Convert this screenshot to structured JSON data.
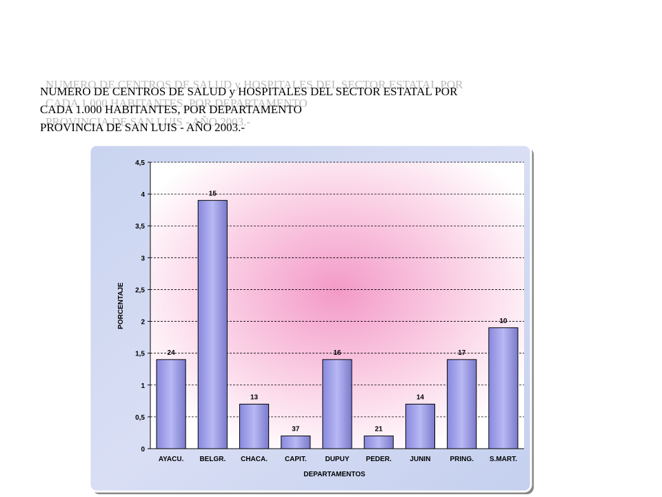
{
  "chart_data": {
    "type": "bar",
    "title": [
      "NUMERO  DE  CENTROS  DE  SALUD  y  HOSPITALES  DEL SECTOR ESTATAL  POR",
      "CADA  1.000  HABITANTES,  POR  DEPARTAMENTO",
      "PROVINCIA  DE  SAN  LUIS  -  AÑO  2003.-"
    ],
    "x_label": "DEPARTAMENTOS",
    "y_label": "PORCENTAJE",
    "categories": [
      "AYACU.",
      "BELGR.",
      "CHACA.",
      "CAPIT.",
      "DUPUY",
      "PEDER.",
      "JUNIN",
      "PRING.",
      "S.MART."
    ],
    "values": [
      1.4,
      3.9,
      0.7,
      0.2,
      1.4,
      0.2,
      0.7,
      1.4,
      1.9
    ],
    "annotations": [
      24,
      15,
      13,
      37,
      16,
      21,
      14,
      17,
      10
    ],
    "color": "#9a9ae6",
    "ylim": [
      0,
      4.5
    ],
    "yticks": [
      0,
      {
        "value": 0.5,
        "label": "0,5"
      },
      1,
      {
        "value": 1.5,
        "label": "1,5"
      },
      2,
      {
        "value": 2.5,
        "label": "2,5"
      },
      3,
      {
        "value": 3.5,
        "label": "3,5"
      },
      4,
      {
        "value": 4.5,
        "label": "4,5"
      }
    ],
    "grid": true
  }
}
